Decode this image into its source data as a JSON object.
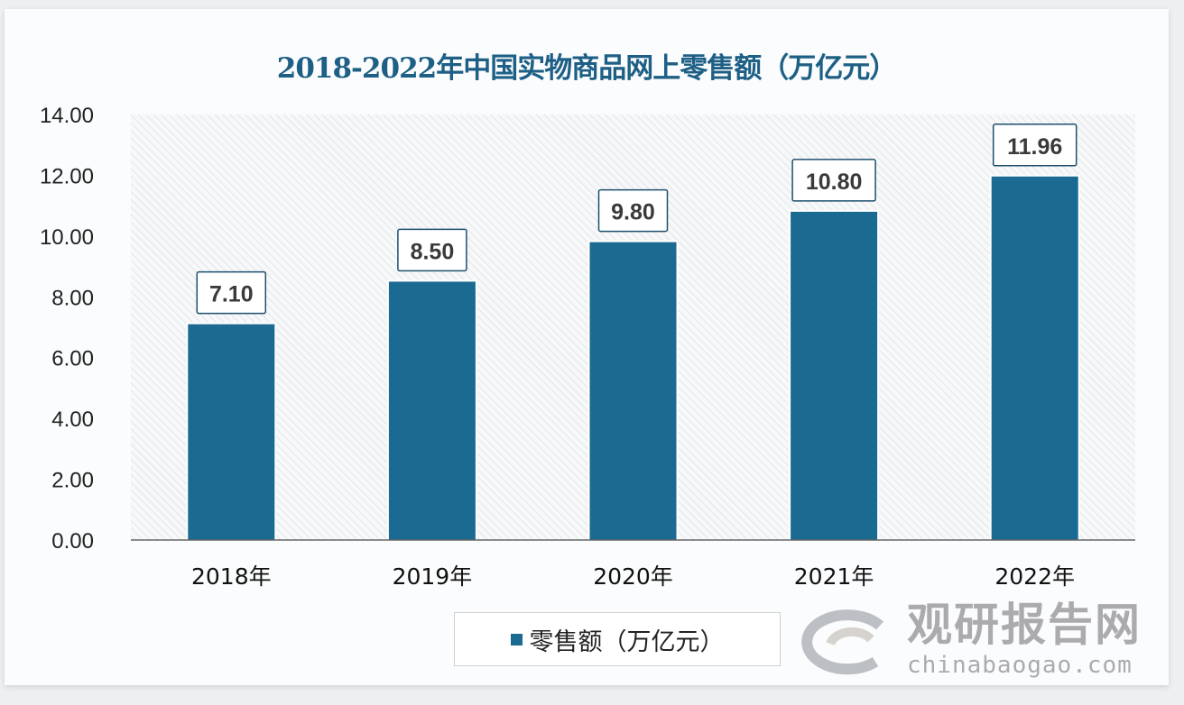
{
  "chart_data": {
    "type": "bar",
    "title": "2018-2022年中国实物商品网上零售额（万亿元）",
    "categories": [
      "2018年",
      "2019年",
      "2020年",
      "2021年",
      "2022年"
    ],
    "series": [
      {
        "name": "零售额（万亿元）",
        "values": [
          7.1,
          8.5,
          9.8,
          10.8,
          11.96
        ]
      }
    ],
    "data_labels": [
      "7.10",
      "8.50",
      "9.80",
      "10.80",
      "11.96"
    ],
    "ylim": [
      0,
      14
    ],
    "yticks": [
      "0.00",
      "2.00",
      "4.00",
      "6.00",
      "8.00",
      "10.00",
      "12.00",
      "14.00"
    ],
    "xlabel": "",
    "ylabel": "",
    "grid": false,
    "legend_position": "bottom",
    "colors": {
      "bar": "#1b6a92",
      "title": "#1d5f85"
    }
  },
  "watermark": {
    "cn": "观研报告网",
    "en": "chinabaogao.com"
  }
}
